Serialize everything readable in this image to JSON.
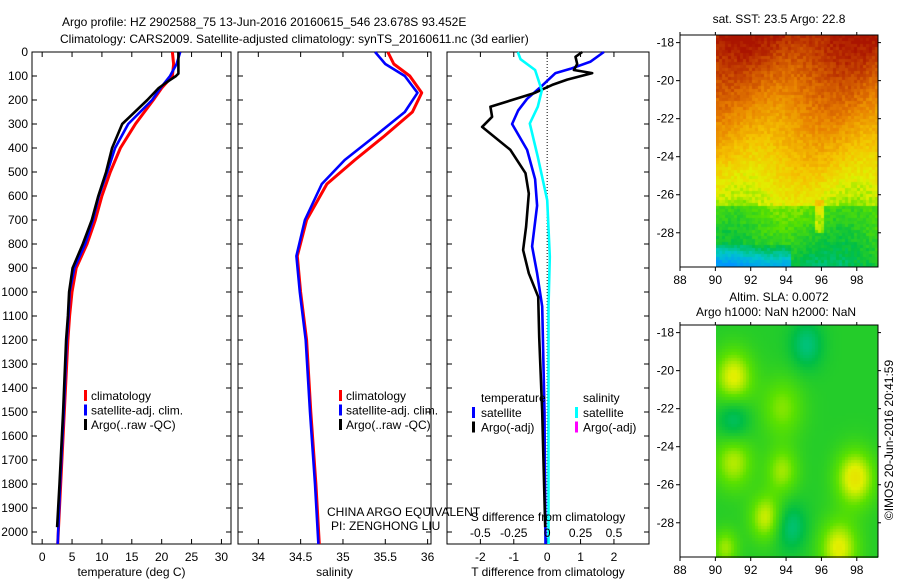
{
  "title": {
    "line1": "Argo profile: HZ 2902588_75 13-Jun-2016 20160615_546 23.678S 93.452E",
    "line2": "Climatology: CARS2009. Satellite-adjusted climatology: synTS_20160611.nc (3d earlier)"
  },
  "annotations": {
    "program": "CHINA ARGO EQUIVALENT",
    "pi": "PI: ZENGHONG LIU",
    "copyright": "©IMOS 20-Jun-2016 20:41:59"
  },
  "chart_data": [
    {
      "type": "line",
      "id": "temperature",
      "xlabel": "temperature (deg C)",
      "ylabel": "",
      "xlim": [
        -1.7,
        31.6
      ],
      "ylim": [
        0,
        2050
      ],
      "xticks": [
        0,
        5,
        10,
        15,
        20,
        25,
        30
      ],
      "xtick_labels": [
        "0",
        "5",
        "10",
        "15",
        "20",
        "25",
        "30"
      ],
      "yticks": [
        0,
        100,
        200,
        300,
        400,
        500,
        600,
        700,
        800,
        900,
        1000,
        1100,
        1200,
        1300,
        1400,
        1500,
        1600,
        1700,
        1800,
        1900,
        2000
      ],
      "ytick_labels": [
        "0",
        "100",
        "200",
        "300",
        "400",
        "500",
        "600",
        "700",
        "800",
        "900",
        "1000",
        "1100",
        "1200",
        "1300",
        "1400",
        "1500",
        "1600",
        "1700",
        "1800",
        "1900",
        "2000"
      ],
      "legend": [
        "climatology",
        "satellite-adj. clim.",
        "Argo(..raw -QC)"
      ],
      "series": [
        {
          "name": "climatology",
          "color": "#ff0000",
          "depth": [
            0,
            50,
            100,
            150,
            200,
            300,
            400,
            500,
            600,
            700,
            800,
            900,
            1000,
            1100,
            1200,
            1500,
            1800,
            2050
          ],
          "values": [
            21.8,
            22.0,
            21.8,
            20.0,
            18.6,
            15.6,
            13.1,
            11.4,
            10.0,
            8.9,
            7.5,
            5.7,
            5.0,
            4.6,
            4.3,
            3.7,
            3.1,
            2.6
          ]
        },
        {
          "name": "satellite-adj. clim.",
          "color": "#0000ff",
          "depth": [
            0,
            50,
            100,
            150,
            200,
            300,
            400,
            500,
            600,
            700,
            800,
            900,
            1000,
            1100,
            1200,
            1500,
            1800,
            2050
          ],
          "values": [
            23.1,
            22.5,
            21.4,
            19.8,
            18.4,
            14.4,
            12.2,
            10.9,
            9.5,
            8.5,
            7.2,
            5.4,
            4.6,
            4.4,
            4.1,
            3.6,
            3.0,
            2.6
          ]
        },
        {
          "name": "Argo(..raw -QC)",
          "color": "#000000",
          "depth": [
            0,
            50,
            90,
            100,
            120,
            150,
            200,
            300,
            400,
            500,
            600,
            700,
            800,
            900,
            1000,
            1100,
            1200,
            1500,
            1800,
            1980
          ],
          "values": [
            22.8,
            22.8,
            22.8,
            22.4,
            21.2,
            19.5,
            17.6,
            13.4,
            11.7,
            10.7,
            9.4,
            8.3,
            6.8,
            5.1,
            4.5,
            4.3,
            4.0,
            3.5,
            2.9,
            2.5
          ]
        }
      ]
    },
    {
      "type": "line",
      "id": "salinity",
      "xlabel": "salinity",
      "xlim": [
        33.76,
        36.04
      ],
      "ylim": [
        0,
        2050
      ],
      "xticks": [
        34,
        34.5,
        35,
        35.5,
        36
      ],
      "xtick_labels": [
        "34",
        "34.5",
        "35",
        "35.5",
        "36"
      ],
      "legend": [
        "climatology",
        "satellite-adj. clim.",
        "Argo(..raw -QC)"
      ],
      "series": [
        {
          "name": "climatology",
          "color": "#ff0000",
          "depth": [
            0,
            50,
            100,
            170,
            250,
            350,
            450,
            550,
            700,
            850,
            1000,
            1200,
            1500,
            1800,
            2050
          ],
          "values": [
            35.53,
            35.6,
            35.79,
            35.93,
            35.82,
            35.49,
            35.14,
            34.81,
            34.57,
            34.46,
            34.5,
            34.57,
            34.62,
            34.68,
            34.72
          ]
        },
        {
          "name": "satellite-adj. clim.",
          "color": "#0000ff",
          "depth": [
            0,
            50,
            100,
            170,
            250,
            350,
            450,
            550,
            700,
            850,
            1000,
            1200,
            1500,
            1800,
            2050
          ],
          "values": [
            35.38,
            35.5,
            35.73,
            35.88,
            35.73,
            35.38,
            35.02,
            34.75,
            34.55,
            34.45,
            34.49,
            34.56,
            34.61,
            34.67,
            34.71
          ]
        }
      ]
    },
    {
      "type": "line",
      "id": "difference",
      "xlabel": "T difference from climatology",
      "x2label": "S difference from climatology",
      "xlim": [
        -3.0,
        3.05
      ],
      "ylim": [
        0,
        2050
      ],
      "xticks": [
        -2,
        -1,
        0,
        1,
        2
      ],
      "xtick_labels": [
        "-2",
        "-1",
        "0",
        "1",
        "2"
      ],
      "s_scale_factor": 4,
      "s_ticks": [
        -0.5,
        -0.25,
        0,
        0.25,
        0.5
      ],
      "s_tick_labels": [
        "-0.5",
        "-0.25",
        "0",
        "0.25",
        "0.5"
      ],
      "legend": {
        "temperature_header": "temperature",
        "salinity_header": "salinity",
        "temperature": [
          "satellite",
          "Argo(-adj)"
        ],
        "salinity": [
          "satellite",
          "Argo(-adj)"
        ],
        "colors": {
          "t_sat": "#0000ff",
          "t_argo": "#000000",
          "s_sat": "#00ffff",
          "s_argo": "#ff00ff"
        }
      },
      "series": [
        {
          "name": "T satellite",
          "unit": "T",
          "color": "#0000ff",
          "depth": [
            0,
            40,
            70,
            88,
            140,
            195,
            244,
            300,
            408,
            530,
            640,
            810,
            922,
            1060,
            1500,
            2050
          ],
          "values": [
            1.7,
            1.3,
            0.7,
            0.25,
            -0.15,
            -0.6,
            -0.87,
            -1.05,
            -0.6,
            -0.36,
            -0.3,
            -0.45,
            -0.3,
            -0.15,
            -0.08,
            -0.05
          ]
        },
        {
          "name": "T Argo(-adj)",
          "unit": "T",
          "color": "#000000",
          "depth": [
            0,
            20,
            50,
            75,
            88,
            115,
            137,
            172,
            228,
            270,
            312,
            408,
            505,
            590,
            728,
            825,
            922,
            1020,
            1188,
            1500,
            1980
          ],
          "values": [
            1.05,
            0.85,
            0.9,
            0.8,
            1.35,
            0.6,
            0.15,
            -0.4,
            -1.7,
            -1.65,
            -1.95,
            -1.1,
            -0.65,
            -0.55,
            -0.63,
            -0.72,
            -0.55,
            -0.27,
            -0.24,
            -0.15,
            -0.06
          ]
        },
        {
          "name": "S satellite",
          "unit": "S",
          "color": "#00ffff",
          "depth": [
            0,
            30,
            75,
            160,
            228,
            298,
            437,
            617,
            853,
            1060,
            1500,
            2050
          ],
          "values": [
            -0.22,
            -0.2,
            -0.09,
            -0.04,
            -0.07,
            -0.13,
            -0.07,
            0.0,
            0.02,
            0.01,
            0.01,
            0.01
          ]
        }
      ]
    },
    {
      "type": "heatmap",
      "id": "sst-map",
      "title": "sat. SST: 23.5 Argo: 22.8",
      "xlim": [
        88,
        99.2
      ],
      "ylim": [
        -29.8,
        -17.6
      ],
      "xticks": [
        88,
        90,
        92,
        94,
        96,
        98
      ],
      "xtick_labels": [
        "88",
        "90",
        "92",
        "94",
        "96",
        "98"
      ],
      "yticks": [
        -18,
        -20,
        -22,
        -24,
        -26,
        -28
      ],
      "ytick_labels": [
        "-18",
        "-20",
        "-22",
        "-24",
        "-26",
        "-28"
      ],
      "data_lon_min": 90
    },
    {
      "type": "heatmap",
      "id": "sla-map",
      "title": "Altim. SLA: 0.0072",
      "subtitle": "Argo h1000: NaN h2000: NaN",
      "xlim": [
        88,
        99.2
      ],
      "ylim": [
        -29.8,
        -17.6
      ],
      "xticks": [
        88,
        90,
        92,
        94,
        96,
        98
      ],
      "xtick_labels": [
        "88",
        "90",
        "92",
        "94",
        "96",
        "98"
      ],
      "yticks": [
        -18,
        -20,
        -22,
        -24,
        -26,
        -28
      ],
      "ytick_labels": [
        "-18",
        "-20",
        "-22",
        "-24",
        "-26",
        "-28"
      ],
      "data_lon_min": 90
    }
  ]
}
